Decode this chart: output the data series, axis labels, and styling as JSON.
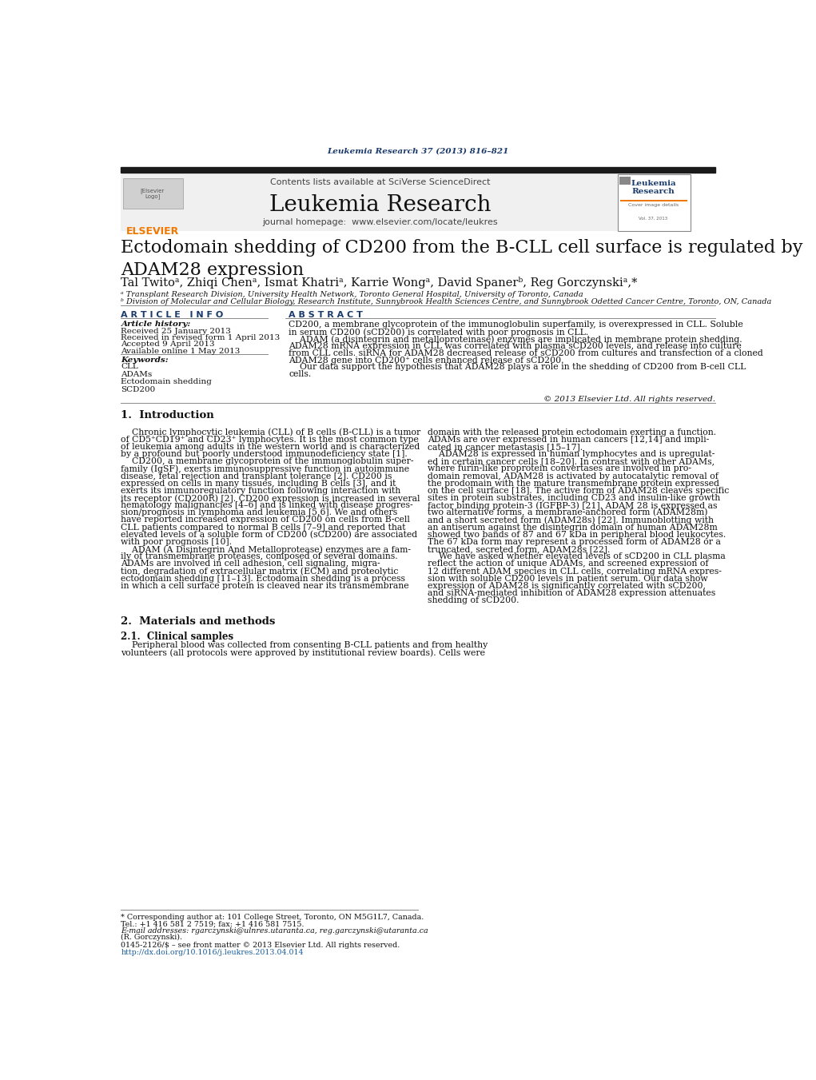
{
  "page_width": 10.21,
  "page_height": 13.51,
  "background_color": "#ffffff",
  "header_citation": "Leukemia Research 37 (2013) 816–821",
  "header_citation_color": "#1a3a6b",
  "journal_name": "Leukemia Research",
  "contents_text": "Contents lists available at SciVerse ScienceDirect",
  "journal_homepage": "journal homepage:  www.elsevier.com/locate/leukres",
  "article_title": "Ectodomain shedding of CD200 from the B-CLL cell surface is regulated by\nADAM28 expression",
  "authors": "Tal Twitoᵃ, Zhiqi Chenᵃ, Ismat Khatriᵃ, Karrie Wongᵃ, David Spanerᵇ, Reg Gorczynskiᵃ,*",
  "affil_a": "ᵃ Transplant Research Division, University Health Network, Toronto General Hospital, University of Toronto, Canada",
  "affil_b": "ᵇ Division of Molecular and Cellular Biology, Research Institute, Sunnybrook Health Sciences Centre, and Sunnybrook Odetted Cancer Centre, Toronto, ON, Canada",
  "article_info_header": "A R T I C L E   I N F O",
  "abstract_header": "A B S T R A C T",
  "article_history_label": "Article history:",
  "received": "Received 25 January 2013",
  "received_revised": "Received in revised form 1 April 2013",
  "accepted": "Accepted 9 April 2013",
  "available": "Available online 1 May 2013",
  "keywords_label": "Keywords:",
  "keywords": [
    "CLL",
    "ADAMs",
    "Ectodomain shedding",
    "SCD200"
  ],
  "abstract_text_lines": [
    "CD200, a membrane glycoprotein of the immunoglobulin superfamily, is overexpressed in CLL. Soluble",
    "in serum CD200 (sCD200) is correlated with poor prognosis in CLL.",
    "    ADAM (a disintegrin and metalloproteinase) enzymes are implicated in membrane protein shedding.",
    "ADAM28 mRNA expression in CLL was correlated with plasma sCD200 levels, and release into culture",
    "from CLL cells. siRNA for ADAM28 decreased release of sCD200 from cultures and transfection of a cloned",
    "ADAM28 gene into CD200⁺ cells enhanced release of sCD200.",
    "    Our data support the hypothesis that ADAM28 plays a role in the shedding of CD200 from B-cell CLL",
    "cells."
  ],
  "copyright": "© 2013 Elsevier Ltd. All rights reserved.",
  "section1_header": "1.  Introduction",
  "intro_col1_lines": [
    "    Chronic lymphocytic leukemia (CLL) of B cells (B-CLL) is a tumor",
    "of CD5⁺CD19⁺ and CD23⁺ lymphocytes. It is the most common type",
    "of leukemia among adults in the western world and is characterized",
    "by a profound but poorly understood immunodeficiency state [1].",
    "    CD200, a membrane glycoprotein of the immunoglobulin super-",
    "family (IgSF), exerts immunosuppressive function in autoimmune",
    "disease, fetal rejection and transplant tolerance [2]. CD200 is",
    "expressed on cells in many tissues, including B cells [3], and it",
    "exerts its immunoregulatory function following interaction with",
    "its receptor (CD200R) [2]. CD200 expression is increased in several",
    "hematology malignancies [4–6] and is linked with disease progres-",
    "sion/prognosis in lymphoma and leukemia [5,6]. We and others",
    "have reported increased expression of CD200 on cells from B-cell",
    "CLL patients compared to normal B cells [7–9] and reported that",
    "elevated levels of a soluble form of CD200 (sCD200) are associated",
    "with poor prognosis [10].",
    "    ADAM (A Disintegrin And Metalloprotease) enzymes are a fam-",
    "ily of transmembrane proteases, composed of several domains.",
    "ADAMs are involved in cell adhesion, cell signaling, migra-",
    "tion, degradation of extracellular matrix (ECM) and proteolytic",
    "ectodomain shedding [11–13]. Ectodomain shedding is a process",
    "in which a cell surface protein is cleaved near its transmembrane"
  ],
  "intro_col2_lines": [
    "domain with the released protein ectodomain exerting a function.",
    "ADAMs are over expressed in human cancers [12,14] and impli-",
    "cated in cancer metastasis [15–17].",
    "    ADAM28 is expressed in human lymphocytes and is upregulat-",
    "ed in certain cancer cells [18–20]. In contrast with other ADAMs,",
    "where furin-like proprotein convertases are involved in pro-",
    "domain removal, ADAM28 is activated by autocatalytic removal of",
    "the prodomain with the mature transmembrane protein expressed",
    "on the cell surface [18]. The active form of ADAM28 cleaves specific",
    "sites in protein substrates, including CD23 and insulin-like growth",
    "factor binding protein-3 (IGFBP-3) [21]. ADAM 28 is expressed as",
    "two alternative forms, a membrane-anchored form (ADAM28m)",
    "and a short secreted form (ADAM28s) [22]. Immunoblotting with",
    "an antiserum against the disintegrin domain of human ADAM28m",
    "showed two bands of 87 and 67 kDa in peripheral blood leukocytes.",
    "The 67 kDa form may represent a processed form of ADAM28 or a",
    "truncated, secreted form, ADAM28s [22].",
    "    We have asked whether elevated levels of sCD200 in CLL plasma",
    "reflect the action of unique ADAMs, and screened expression of",
    "12 different ADAM species in CLL cells, correlating mRNA expres-",
    "sion with soluble CD200 levels in patient serum. Our data show",
    "expression of ADAM28 is significantly correlated with sCD200,",
    "and siRNA-mediated inhibition of ADAM28 expression attenuates",
    "shedding of sCD200."
  ],
  "section2_header": "2.  Materials and methods",
  "section21_header": "2.1.  Clinical samples",
  "section21_lines": [
    "    Peripheral blood was collected from consenting B-CLL patients and from healthy",
    "volunteers (all protocols were approved by institutional review boards). Cells were"
  ],
  "footnote_star": "* Corresponding author at: 101 College Street, Toronto, ON M5G1L7, Canada.",
  "footnote_tel": "Tel.: +1 416 581 2 7519; fax: +1 416 581 7515.",
  "footnote_email": "E-mail addresses: rgarczynski@ulnres.utaranta.ca, reg.garczynski@utaranta.ca",
  "footnote_email2": "(R. Gorczynski).",
  "footnote_issn": "0145-2126/$ – see front matter © 2013 Elsevier Ltd. All rights reserved.",
  "footnote_doi": "http://dx.doi.org/10.1016/j.leukres.2013.04.014",
  "header_bar_color": "#1a1a1a",
  "section_header_color": "#1a3a6b",
  "link_color": "#1a5f9e",
  "elsevier_orange": "#f07800"
}
